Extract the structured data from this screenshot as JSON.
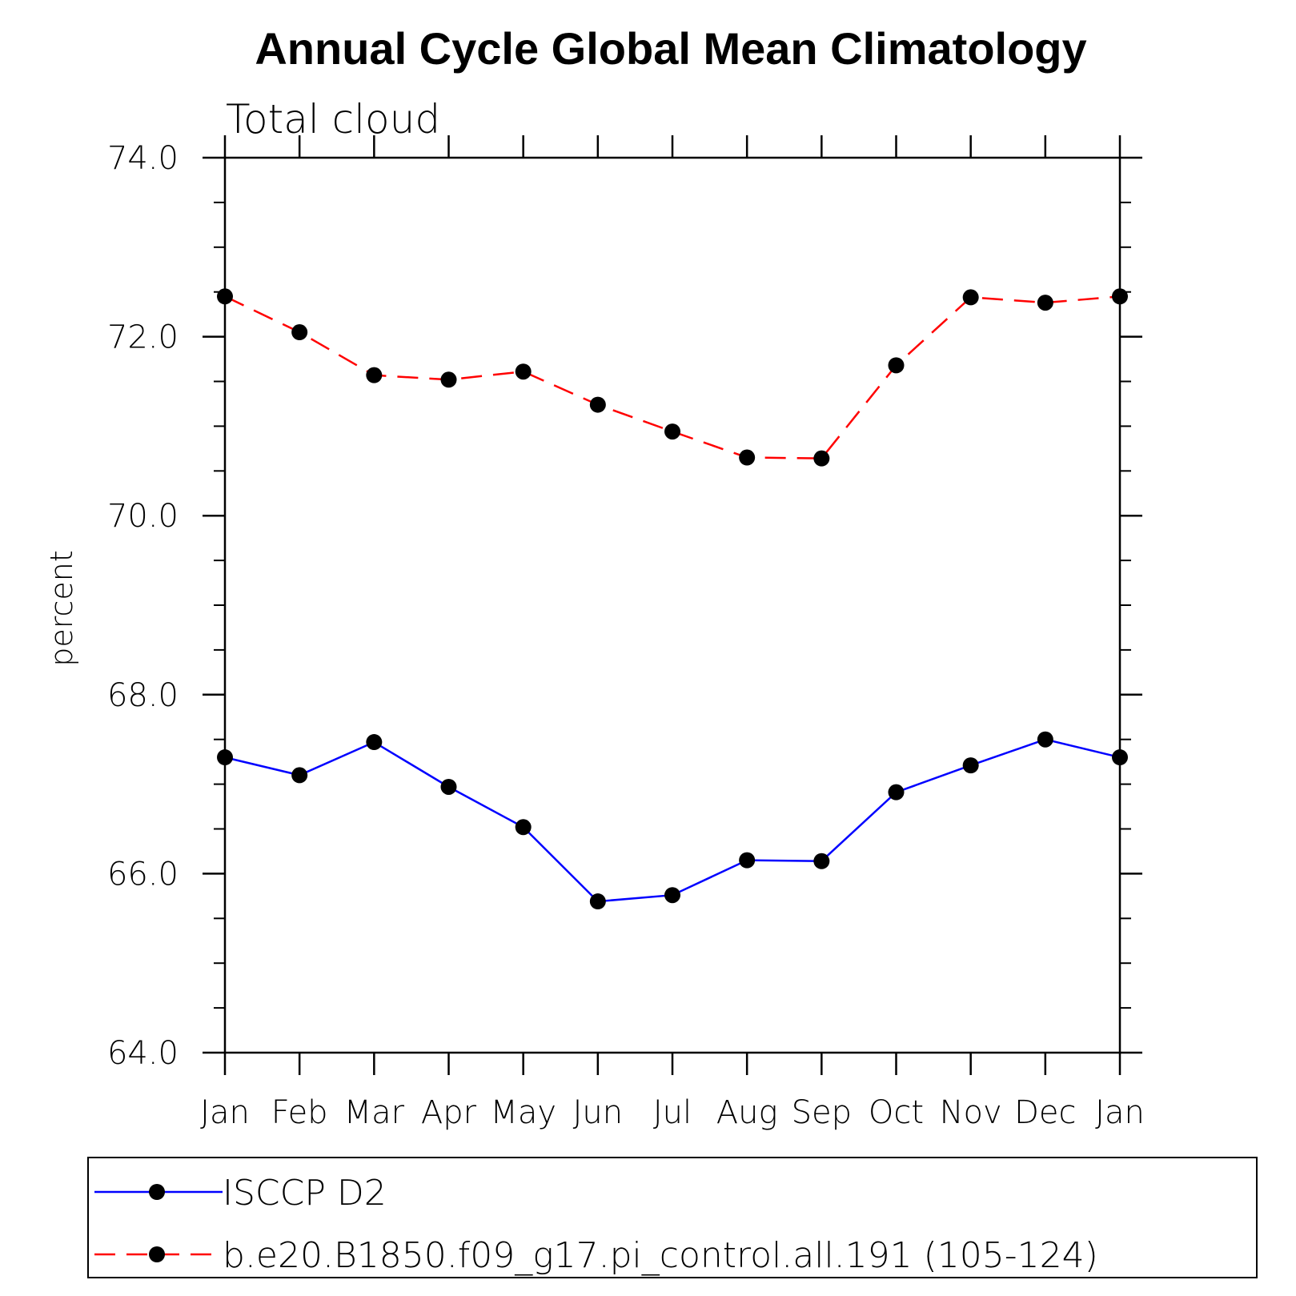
{
  "chart_data": {
    "type": "line",
    "title": "Annual Cycle Global Mean Climatology",
    "subtitle": "Total cloud",
    "xlabel": "",
    "ylabel": "percent",
    "categories": [
      "Jan",
      "Feb",
      "Mar",
      "Apr",
      "May",
      "Jun",
      "Jul",
      "Aug",
      "Sep",
      "Oct",
      "Nov",
      "Dec",
      "Jan"
    ],
    "ylim": [
      64.0,
      74.0
    ],
    "yticks": [
      "64.0",
      "66.0",
      "68.0",
      "70.0",
      "72.0",
      "74.0"
    ],
    "grid": false,
    "legend_position": "bottom",
    "series": [
      {
        "name": "ISCCP D2",
        "color": "#0000ff",
        "dash": "solid",
        "marker": "filled-circle",
        "values": [
          67.3,
          67.1,
          67.47,
          66.97,
          66.52,
          65.69,
          65.76,
          66.15,
          66.14,
          66.91,
          67.21,
          67.5,
          67.3
        ]
      },
      {
        "name": "b.e20.B1850.f09_g17.pi_control.all.191 (105-124)",
        "color": "#ff0000",
        "dash": "dashed",
        "marker": "filled-circle",
        "values": [
          72.45,
          72.05,
          71.57,
          71.52,
          71.61,
          71.24,
          70.94,
          70.65,
          70.64,
          71.68,
          72.44,
          72.38,
          72.45
        ]
      }
    ]
  }
}
